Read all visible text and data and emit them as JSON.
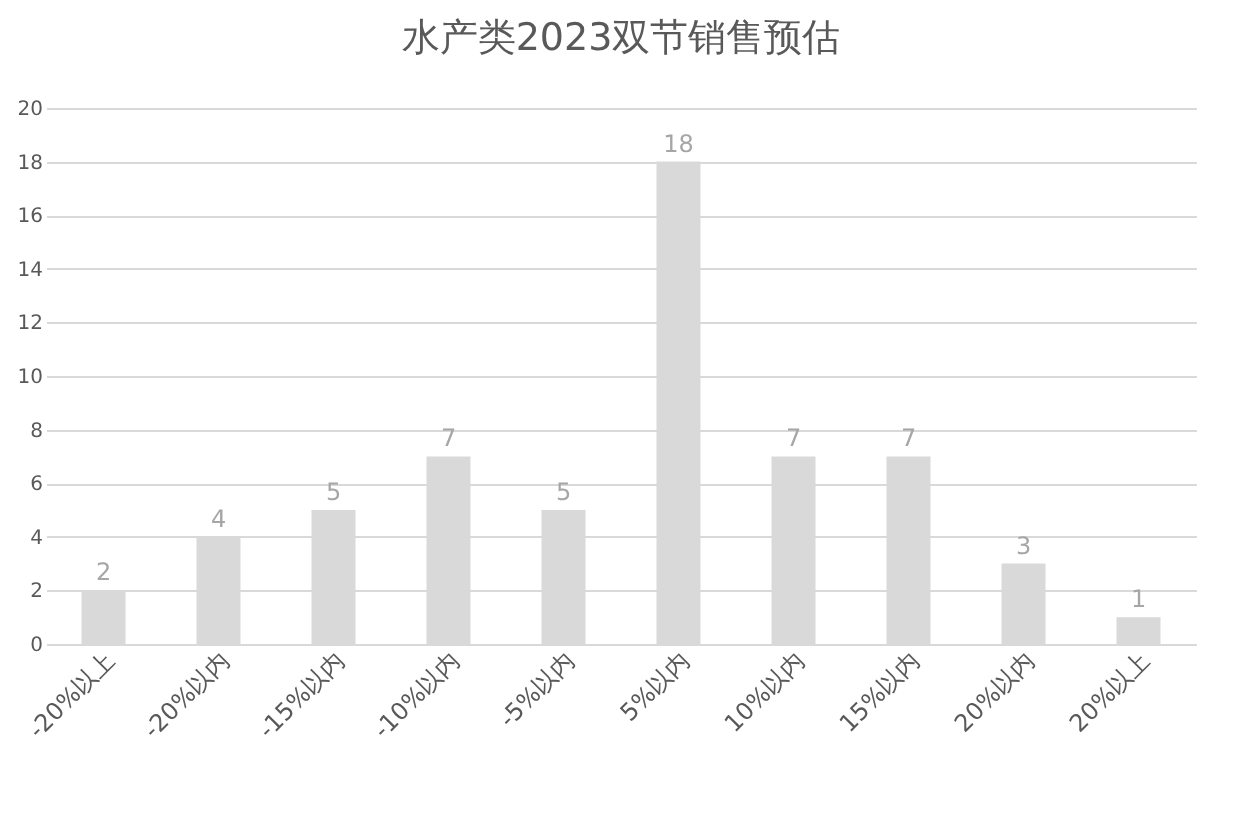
{
  "chart_data": {
    "type": "bar",
    "title": "水产类2023双节销售预估",
    "categories": [
      "-20%以上",
      "-20%以内",
      "-15%以内",
      "-10%以内",
      "-5%以内",
      "5%以内",
      "10%以内",
      "15%以内",
      "20%以内",
      "20%以上"
    ],
    "values": [
      2,
      4,
      5,
      7,
      5,
      18,
      7,
      7,
      3,
      1
    ],
    "color": "#d9d9d9",
    "ylim": [
      0,
      20
    ],
    "yticks": [
      0,
      2,
      4,
      6,
      8,
      10,
      12,
      14,
      16,
      18,
      20
    ],
    "grid": "y",
    "data_labels": true
  }
}
